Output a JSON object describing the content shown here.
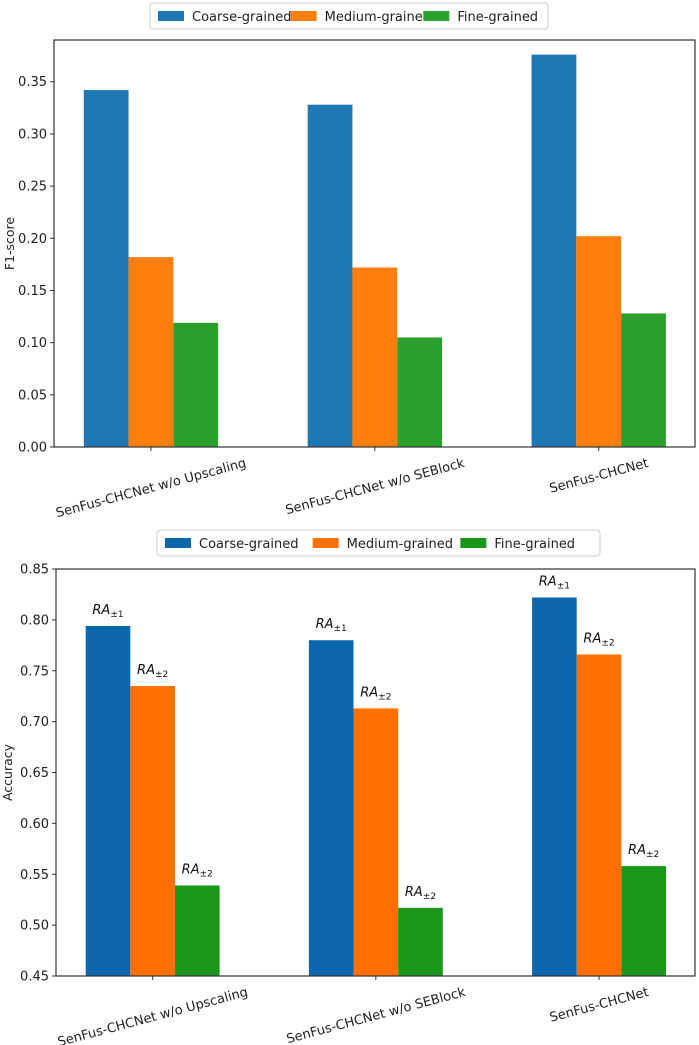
{
  "chart_data": [
    {
      "type": "bar",
      "title": "",
      "xlabel": "",
      "ylabel": "F1-score",
      "ylim": [
        0,
        0.39
      ],
      "yticks": [
        "0.00",
        "0.05",
        "0.10",
        "0.15",
        "0.20",
        "0.25",
        "0.30",
        "0.35"
      ],
      "categories": [
        "SenFus-CHCNet w/o Upscaling",
        "SenFus-CHCNet w/o SEBlock",
        "SenFus-CHCNet"
      ],
      "legend_position": "top-center",
      "series": [
        {
          "name": "Coarse-grained",
          "color": "#1f77b4",
          "values": [
            0.342,
            0.328,
            0.376
          ]
        },
        {
          "name": "Medium-grained",
          "color": "#ff7f0e",
          "values": [
            0.182,
            0.172,
            0.202
          ]
        },
        {
          "name": "Fine-grained",
          "color": "#2ca02c",
          "values": [
            0.119,
            0.105,
            0.128
          ]
        }
      ]
    },
    {
      "type": "bar",
      "title": "",
      "xlabel": "",
      "ylabel": "Accuracy",
      "ylim": [
        0.45,
        0.85
      ],
      "yticks": [
        "0.45",
        "0.50",
        "0.55",
        "0.60",
        "0.65",
        "0.70",
        "0.75",
        "0.80",
        "0.85"
      ],
      "categories": [
        "SenFus-CHCNet w/o Upscaling",
        "SenFus-CHCNet w/o SEBlock",
        "SenFus-CHCNet"
      ],
      "legend_position": "top-center",
      "series": [
        {
          "name": "Coarse-grained",
          "color": "#0c66ab",
          "values": [
            0.794,
            0.78,
            0.822
          ],
          "annotation": {
            "main": "RA",
            "sub": "±1"
          }
        },
        {
          "name": "Medium-grained",
          "color": "#ff7000",
          "values": [
            0.735,
            0.713,
            0.766
          ],
          "annotation": {
            "main": "RA",
            "sub": "±2"
          }
        },
        {
          "name": "Fine-grained",
          "color": "#1a961a",
          "values": [
            0.539,
            0.517,
            0.558
          ],
          "annotation": {
            "main": "RA",
            "sub": "±2"
          }
        }
      ]
    }
  ]
}
